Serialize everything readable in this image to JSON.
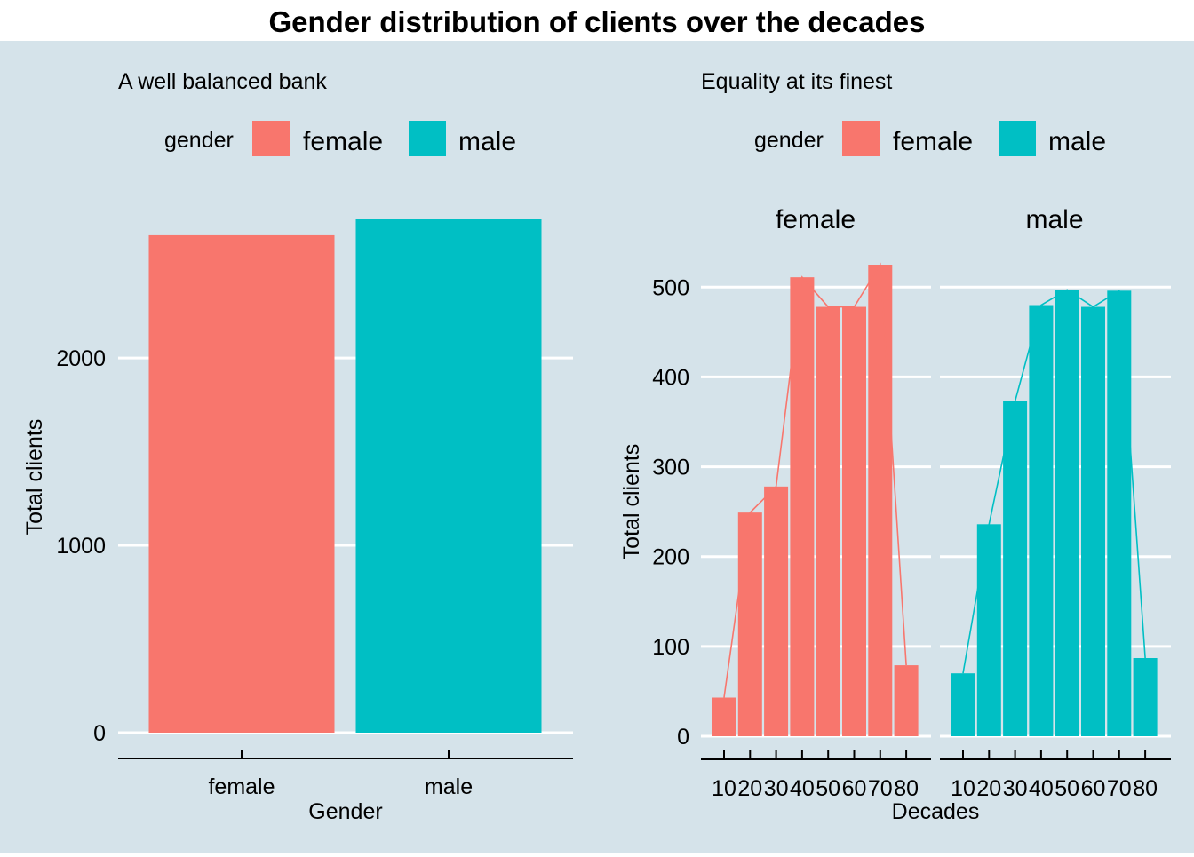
{
  "title": "Gender distribution of clients over the decades",
  "colors": {
    "background": "#d5e3ea",
    "title_strip": "#ffffff",
    "grid": "#ffffff",
    "axis": "#000000",
    "female": "#f8766d",
    "male": "#00bfc4"
  },
  "chart_data": [
    {
      "type": "bar",
      "subtitle": "A well balanced bank",
      "legend": {
        "title": "gender",
        "position": "top",
        "entries": [
          "female",
          "male"
        ]
      },
      "categories": [
        "female",
        "male"
      ],
      "values": [
        2655,
        2740
      ],
      "xlabel": "Gender",
      "ylabel": "Total clients",
      "ylim": [
        0,
        2740
      ],
      "yticks": [
        "0",
        "1000",
        "2000"
      ],
      "grid": true
    },
    {
      "type": "bar",
      "subtitle": "Equality at its finest",
      "legend": {
        "title": "gender",
        "position": "top",
        "entries": [
          "female",
          "male"
        ]
      },
      "overlay": "line connecting bar tops",
      "xlabel": "Decades",
      "ylabel": "Total clients",
      "ylim": [
        0,
        525
      ],
      "yticks": [
        "0",
        "100",
        "200",
        "300",
        "400",
        "500"
      ],
      "x_tick_labels": [
        "10",
        "20",
        "30",
        "40",
        "50",
        "60",
        "70",
        "80"
      ],
      "grid": true,
      "panels": [
        {
          "name": "female",
          "categories": [
            "10",
            "20",
            "30",
            "40",
            "50",
            "60",
            "70",
            "80"
          ],
          "values": [
            43,
            249,
            278,
            511,
            478,
            478,
            525,
            79
          ]
        },
        {
          "name": "male",
          "categories": [
            "10",
            "20",
            "30",
            "40",
            "50",
            "60",
            "70",
            "80"
          ],
          "values": [
            70,
            236,
            373,
            480,
            497,
            478,
            496,
            87
          ]
        }
      ]
    }
  ]
}
